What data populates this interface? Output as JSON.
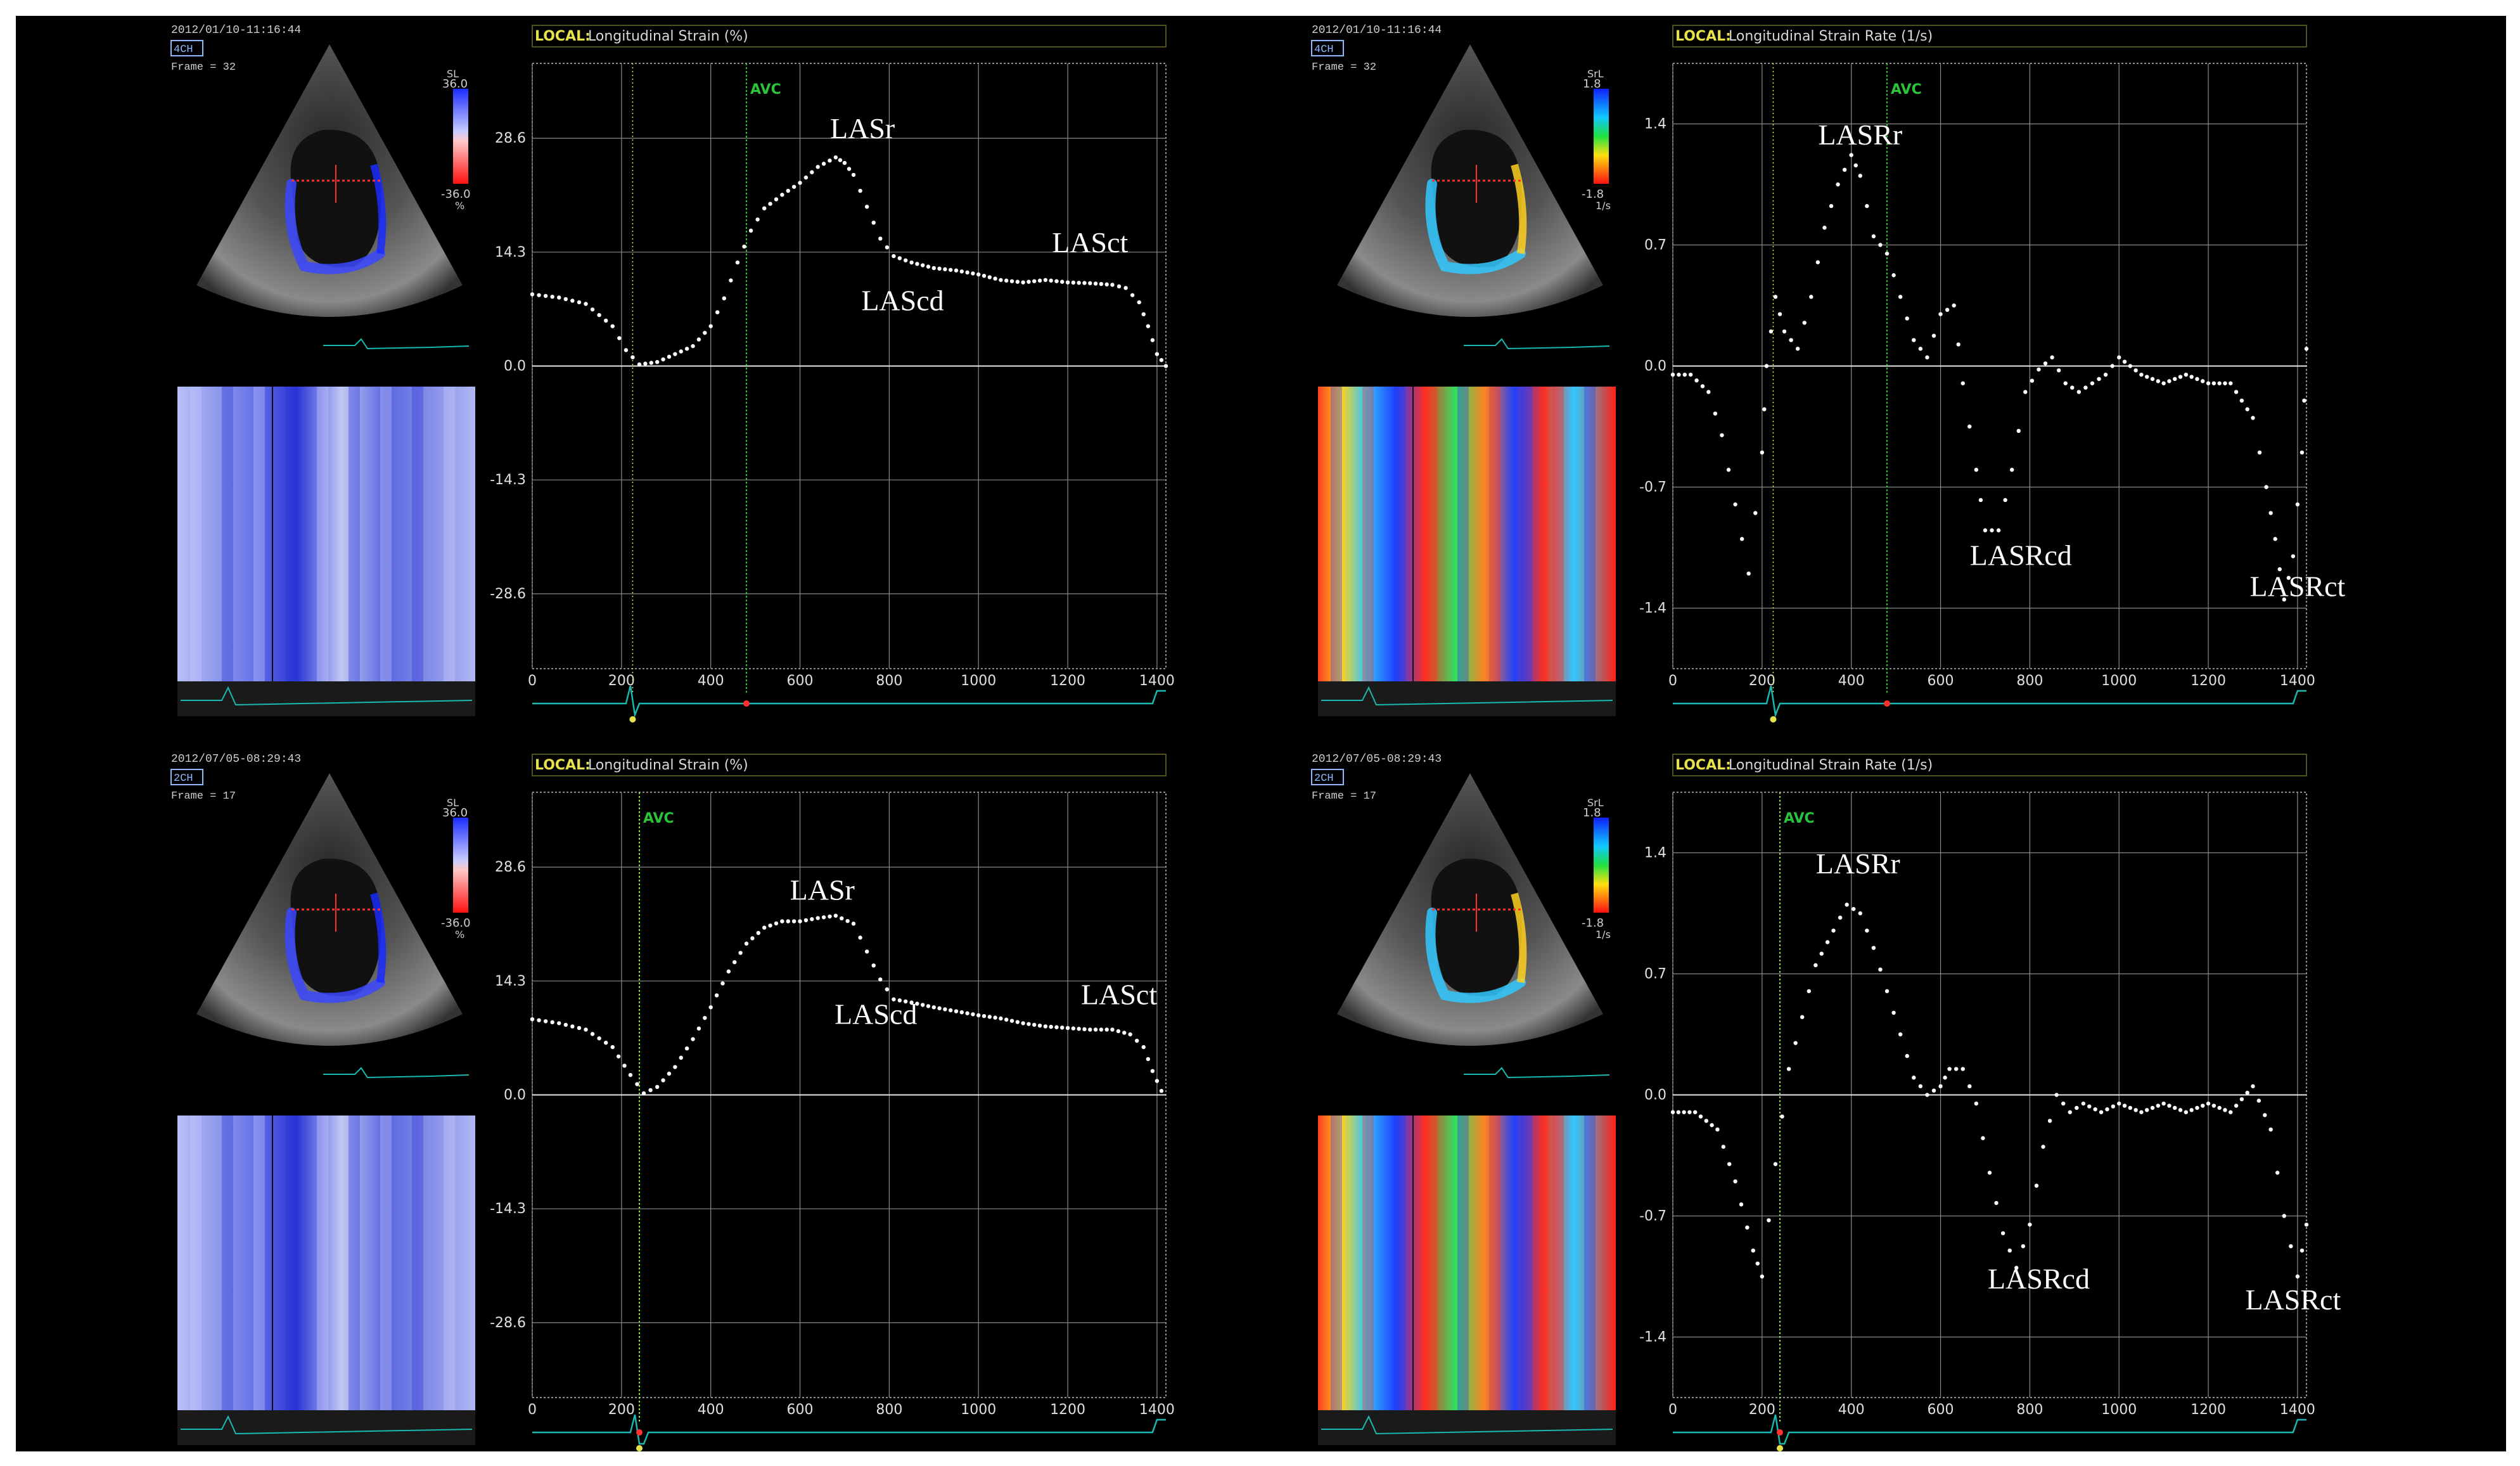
{
  "panels": [
    {
      "id": "tl",
      "datetime": "2012/01/10-11:16:44",
      "view": "4CH",
      "frame": "Frame = 32",
      "scale_top": "36.0",
      "scale_bottom": "-36.0",
      "scale_unit_top": "SL",
      "scale_unit_bottom": "%",
      "colormap": "blue-red",
      "mmode": "blue",
      "header_tag": "LOCAL:",
      "header_title": "Longitudinal Strain (%)",
      "avc_label": "AVC",
      "avc_x": 480,
      "marker_x": 225,
      "ytick_labels": [
        "28.6",
        "14.3",
        "0.0",
        "-14.3",
        "-28.6"
      ],
      "xtick_labels": [
        "0",
        "200",
        "400",
        "600",
        "800",
        "1000",
        "1200",
        "1400"
      ],
      "annotations": [
        {
          "text": "LASr",
          "x": 740,
          "y": 28.6
        },
        {
          "text": "LAScd",
          "x": 830,
          "y": 7.0
        },
        {
          "text": "LASct",
          "x": 1250,
          "y": 14.3
        }
      ]
    },
    {
      "id": "tr",
      "datetime": "2012/01/10-11:16:44",
      "view": "4CH",
      "frame": "Frame = 32",
      "scale_top": "1.8",
      "scale_bottom": "-1.8",
      "scale_unit_top": "SrL",
      "scale_unit_bottom": "1/s",
      "colormap": "rainbow",
      "mmode": "rainbow",
      "header_tag": "LOCAL:",
      "header_title": "Longitudinal Strain Rate (1/s)",
      "avc_label": "AVC",
      "avc_x": 480,
      "marker_x": 225,
      "ytick_labels": [
        "1.4",
        "0.7",
        "0.0",
        "-0.7",
        "-1.4"
      ],
      "xtick_labels": [
        "0",
        "200",
        "400",
        "600",
        "800",
        "1000",
        "1200",
        "1400"
      ],
      "annotations": [
        {
          "text": "LASRr",
          "x": 420,
          "y": 1.28
        },
        {
          "text": "LASRcd",
          "x": 780,
          "y": -1.15
        },
        {
          "text": "LASRct",
          "x": 1400,
          "y": -1.33
        }
      ]
    },
    {
      "id": "bl",
      "datetime": "2012/07/05-08:29:43",
      "view": "2CH",
      "frame": "Frame = 17",
      "scale_top": "36.0",
      "scale_bottom": "-36.0",
      "scale_unit_top": "SL",
      "scale_unit_bottom": "%",
      "colormap": "blue-red",
      "mmode": "blue2",
      "header_tag": "LOCAL:",
      "header_title": "Longitudinal Strain (%)",
      "avc_label": "AVC",
      "avc_x": 240,
      "marker_x": 240,
      "ytick_labels": [
        "28.6",
        "14.3",
        "0.0",
        "-14.3",
        "-28.6"
      ],
      "xtick_labels": [
        "0",
        "200",
        "400",
        "600",
        "800",
        "1000",
        "1200",
        "1400"
      ],
      "annotations": [
        {
          "text": "LASr",
          "x": 650,
          "y": 24.5
        },
        {
          "text": "LAScd",
          "x": 770,
          "y": 8.9
        },
        {
          "text": "LASct",
          "x": 1315,
          "y": 11.4
        }
      ]
    },
    {
      "id": "br",
      "datetime": "2012/07/05-08:29:43",
      "view": "2CH",
      "frame": "Frame = 17",
      "scale_top": "1.8",
      "scale_bottom": "-1.8",
      "scale_unit_top": "SrL",
      "scale_unit_bottom": "1/s",
      "colormap": "rainbow",
      "mmode": "rainbow2",
      "header_tag": "LOCAL:",
      "header_title": "Longitudinal Strain Rate (1/s)",
      "avc_label": "AVC",
      "avc_x": 240,
      "marker_x": 240,
      "ytick_labels": [
        "1.4",
        "0.7",
        "0.0",
        "-0.7",
        "-1.4"
      ],
      "xtick_labels": [
        "0",
        "200",
        "400",
        "600",
        "800",
        "1000",
        "1200",
        "1400"
      ],
      "annotations": [
        {
          "text": "LASRr",
          "x": 415,
          "y": 1.28
        },
        {
          "text": "LASRcd",
          "x": 820,
          "y": -1.12
        },
        {
          "text": "LASRct",
          "x": 1390,
          "y": -1.24
        }
      ]
    }
  ],
  "chart_data": [
    {
      "type": "scatter",
      "title": "Longitudinal Strain (%)",
      "ylim": [
        -38,
        38
      ],
      "xlim": [
        0,
        1420
      ],
      "yticks": [
        28.6,
        14.3,
        0.0,
        -14.3,
        -28.6
      ],
      "xticks": [
        0,
        200,
        400,
        600,
        800,
        1000,
        1200,
        1400
      ],
      "x": [
        0,
        60,
        120,
        180,
        210,
        240,
        280,
        320,
        360,
        400,
        430,
        460,
        490,
        520,
        560,
        600,
        640,
        680,
        700,
        720,
        750,
        780,
        810,
        850,
        900,
        950,
        1000,
        1050,
        1100,
        1150,
        1200,
        1250,
        1300,
        1330,
        1360,
        1380,
        1400,
        1420
      ],
      "y": [
        9.0,
        8.6,
        7.8,
        5.0,
        2.0,
        0.2,
        0.5,
        1.5,
        2.5,
        5.0,
        8.5,
        13.0,
        17.0,
        19.8,
        21.5,
        23.0,
        25.0,
        26.2,
        25.5,
        24.0,
        20.0,
        16.0,
        13.8,
        13.0,
        12.3,
        12.0,
        11.5,
        10.8,
        10.5,
        10.8,
        10.5,
        10.4,
        10.2,
        9.8,
        8.0,
        5.0,
        1.5,
        0.0
      ],
      "marker": "dotted",
      "color": "#ffffff"
    },
    {
      "type": "scatter",
      "title": "Longitudinal Strain Rate (1/s)",
      "ylim": [
        -1.75,
        1.75
      ],
      "xlim": [
        0,
        1420
      ],
      "yticks": [
        1.4,
        0.7,
        0.0,
        -0.7,
        -1.4
      ],
      "xticks": [
        0,
        200,
        400,
        600,
        800,
        1000,
        1200,
        1400
      ],
      "x": [
        0,
        40,
        80,
        110,
        140,
        170,
        200,
        210,
        230,
        250,
        280,
        310,
        340,
        370,
        400,
        420,
        450,
        480,
        510,
        540,
        570,
        600,
        630,
        650,
        680,
        700,
        730,
        760,
        790,
        820,
        850,
        880,
        910,
        940,
        970,
        1000,
        1050,
        1100,
        1150,
        1200,
        1250,
        1300,
        1330,
        1350,
        1370,
        1390,
        1410,
        1420
      ],
      "y": [
        -0.05,
        -0.05,
        -0.15,
        -0.4,
        -0.8,
        -1.2,
        -0.5,
        0.0,
        0.4,
        0.2,
        0.1,
        0.4,
        0.8,
        1.05,
        1.22,
        1.1,
        0.75,
        0.65,
        0.4,
        0.15,
        0.05,
        0.3,
        0.35,
        -0.1,
        -0.6,
        -0.95,
        -0.95,
        -0.6,
        -0.15,
        -0.02,
        0.05,
        -0.1,
        -0.15,
        -0.1,
        -0.05,
        0.05,
        -0.05,
        -0.1,
        -0.05,
        -0.1,
        -0.1,
        -0.3,
        -0.7,
        -1.0,
        -1.35,
        -1.1,
        -0.5,
        0.1
      ],
      "marker": "dotted",
      "color": "#ffffff"
    },
    {
      "type": "scatter",
      "title": "Longitudinal Strain (%)",
      "ylim": [
        -38,
        38
      ],
      "xlim": [
        0,
        1420
      ],
      "yticks": [
        28.6,
        14.3,
        0.0,
        -14.3,
        -28.6
      ],
      "xticks": [
        0,
        200,
        400,
        600,
        800,
        1000,
        1200,
        1400
      ],
      "x": [
        0,
        60,
        120,
        180,
        220,
        250,
        280,
        320,
        360,
        400,
        440,
        480,
        520,
        560,
        600,
        640,
        680,
        720,
        750,
        780,
        810,
        850,
        900,
        950,
        1000,
        1050,
        1100,
        1150,
        1200,
        1250,
        1300,
        1340,
        1370,
        1390,
        1410
      ],
      "y": [
        9.5,
        9.0,
        8.2,
        6.0,
        2.5,
        0.2,
        1.0,
        3.5,
        7.0,
        11.0,
        15.5,
        19.0,
        21.0,
        21.8,
        21.8,
        22.2,
        22.5,
        21.5,
        18.0,
        14.5,
        12.0,
        11.6,
        11.0,
        10.5,
        10.0,
        9.6,
        9.0,
        8.6,
        8.4,
        8.2,
        8.2,
        7.6,
        6.0,
        3.0,
        0.5
      ],
      "marker": "dotted",
      "color": "#ffffff"
    },
    {
      "type": "scatter",
      "title": "Longitudinal Strain Rate (1/s)",
      "ylim": [
        -1.75,
        1.75
      ],
      "xlim": [
        0,
        1420
      ],
      "yticks": [
        1.4,
        0.7,
        0.0,
        -0.7,
        -1.4
      ],
      "xticks": [
        0,
        200,
        400,
        600,
        800,
        1000,
        1200,
        1400
      ],
      "x": [
        0,
        50,
        100,
        140,
        180,
        200,
        230,
        260,
        290,
        320,
        360,
        390,
        420,
        450,
        480,
        510,
        540,
        570,
        600,
        620,
        650,
        680,
        710,
        740,
        770,
        800,
        830,
        860,
        890,
        920,
        960,
        1000,
        1050,
        1100,
        1150,
        1200,
        1250,
        1300,
        1340,
        1370,
        1400,
        1420
      ],
      "y": [
        -0.1,
        -0.1,
        -0.2,
        -0.5,
        -0.9,
        -1.05,
        -0.4,
        0.15,
        0.45,
        0.75,
        0.95,
        1.1,
        1.05,
        0.85,
        0.6,
        0.35,
        0.1,
        0.0,
        0.05,
        0.15,
        0.15,
        -0.05,
        -0.45,
        -0.8,
        -1.0,
        -0.75,
        -0.3,
        0.0,
        -0.1,
        -0.05,
        -0.1,
        -0.05,
        -0.1,
        -0.05,
        -0.1,
        -0.05,
        -0.1,
        0.05,
        -0.2,
        -0.7,
        -1.05,
        -0.75
      ],
      "marker": "dotted",
      "color": "#ffffff"
    }
  ],
  "colors": {
    "background": "#000000",
    "frame": "#ffffff",
    "grid": "#8a8a8a",
    "curve": "#ffffff",
    "avc": "#29c43a",
    "header_tag": "#e8e24a",
    "ecg": "#19b8b0"
  }
}
